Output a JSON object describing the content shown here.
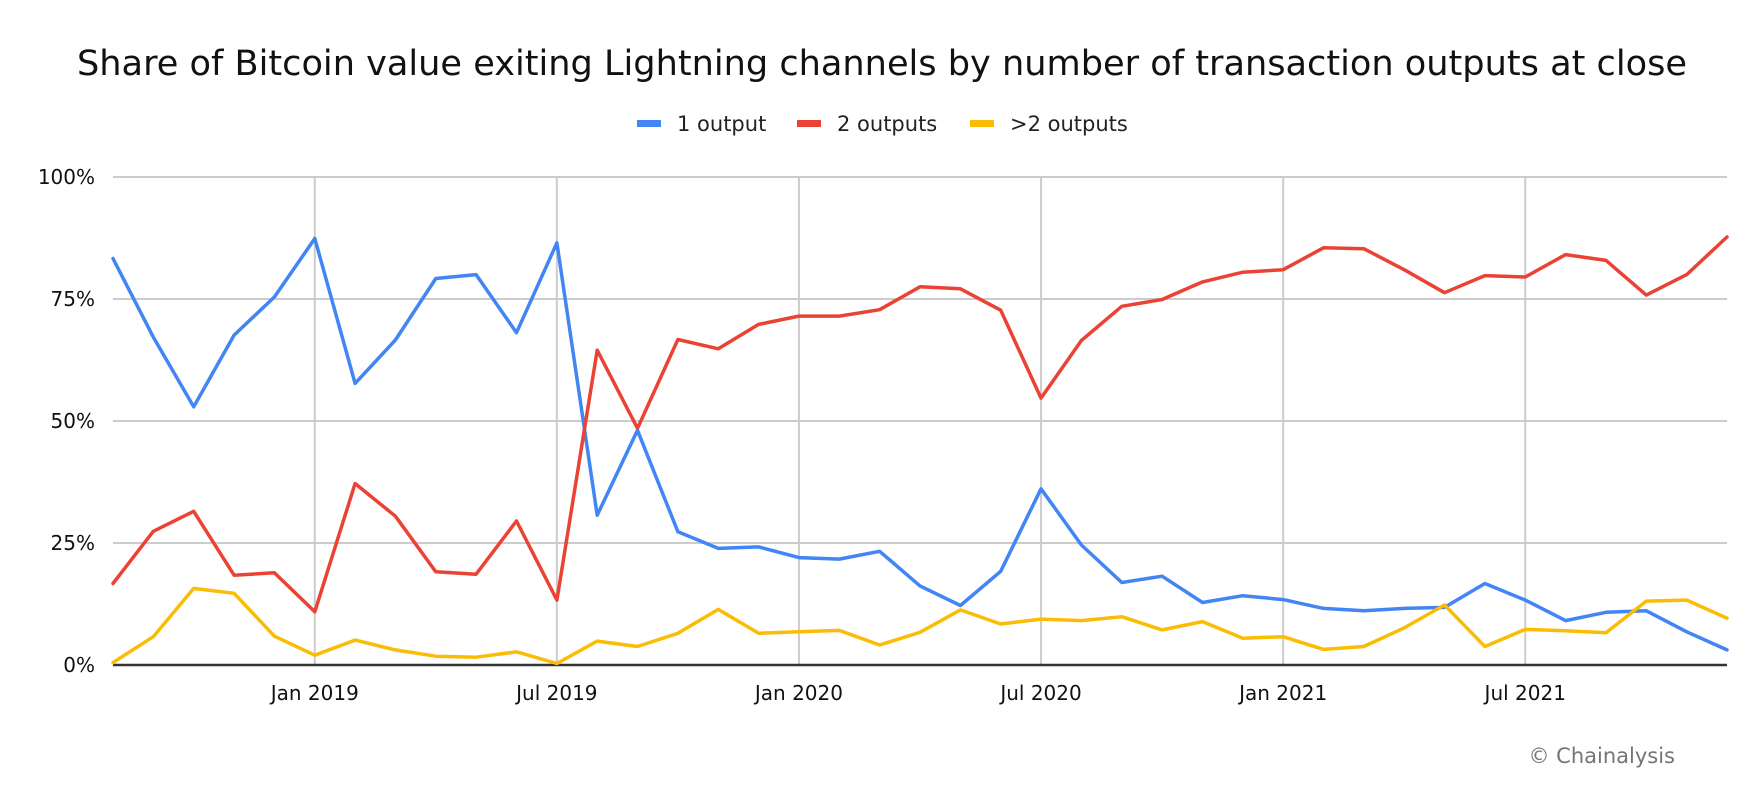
{
  "chart_data": {
    "type": "line",
    "title": "Share of Bitcoin value exiting Lightning channels by number of transaction outputs at close",
    "xlabel": "",
    "ylabel": "",
    "ylim": [
      0,
      100
    ],
    "yticks": [
      0,
      25,
      50,
      75,
      100
    ],
    "ytick_labels": [
      "0%",
      "25%",
      "50%",
      "75%",
      "100%"
    ],
    "x": [
      "Aug 2018",
      "Sep 2018",
      "Oct 2018",
      "Nov 2018",
      "Dec 2018",
      "Jan 2019",
      "Feb 2019",
      "Mar 2019",
      "Apr 2019",
      "May 2019",
      "Jun 2019",
      "Jul 2019",
      "Aug 2019",
      "Sep 2019",
      "Oct 2019",
      "Nov 2019",
      "Dec 2019",
      "Jan 2020",
      "Feb 2020",
      "Mar 2020",
      "Apr 2020",
      "May 2020",
      "Jun 2020",
      "Jul 2020",
      "Aug 2020",
      "Sep 2020",
      "Oct 2020",
      "Nov 2020",
      "Dec 2020",
      "Jan 2021",
      "Feb 2021",
      "Mar 2021",
      "Apr 2021",
      "May 2021",
      "Jun 2021",
      "Jul 2021",
      "Aug 2021",
      "Sep 2021",
      "Oct 2021",
      "Nov 2021",
      "Dec 2021"
    ],
    "xticks": [
      {
        "index": 5,
        "label": "Jan 2019"
      },
      {
        "index": 11,
        "label": "Jul 2019"
      },
      {
        "index": 17,
        "label": "Jan 2020"
      },
      {
        "index": 23,
        "label": "Jul 2020"
      },
      {
        "index": 29,
        "label": "Jan 2021"
      },
      {
        "index": 35,
        "label": "Jul 2021"
      }
    ],
    "grid": true,
    "legend_position": "top-center",
    "series": [
      {
        "name": "1 output",
        "color": "#4285f4",
        "values": [
          83.3,
          67.2,
          52.9,
          67.6,
          75.4,
          87.4,
          57.7,
          66.6,
          79.2,
          80.0,
          68.1,
          86.5,
          30.7,
          48.1,
          27.3,
          23.9,
          24.2,
          22.0,
          21.7,
          23.3,
          16.2,
          12.2,
          19.2,
          36.1,
          24.6,
          16.9,
          18.2,
          12.8,
          14.2,
          13.4,
          11.6,
          11.1,
          11.6,
          11.8,
          16.7,
          13.3,
          9.1,
          10.8,
          11.1,
          6.8,
          3.1
        ]
      },
      {
        "name": "2 outputs",
        "color": "#ea4335",
        "values": [
          16.7,
          27.4,
          31.5,
          18.4,
          18.9,
          10.9,
          37.2,
          30.5,
          19.1,
          18.6,
          29.5,
          13.3,
          64.5,
          48.5,
          66.7,
          64.8,
          69.8,
          71.5,
          71.5,
          72.8,
          77.5,
          77.1,
          72.7,
          54.7,
          66.5,
          73.5,
          74.9,
          78.5,
          80.5,
          81.0,
          85.5,
          85.3,
          81.0,
          76.3,
          79.8,
          79.5,
          84.1,
          82.9,
          75.8,
          80.0,
          87.7
        ]
      },
      {
        "name": ">2 outputs",
        "color": "#fbbc04",
        "values": [
          0.5,
          5.8,
          15.7,
          14.7,
          5.9,
          2.0,
          5.1,
          3.1,
          1.8,
          1.6,
          2.7,
          0.3,
          4.9,
          3.8,
          6.5,
          11.4,
          6.5,
          6.8,
          7.1,
          4.1,
          6.7,
          11.3,
          8.4,
          9.4,
          9.1,
          9.9,
          7.2,
          8.9,
          5.5,
          5.8,
          3.2,
          3.8,
          7.6,
          12.3,
          3.8,
          7.3,
          7.0,
          6.6,
          13.1,
          13.3,
          9.6
        ]
      }
    ]
  },
  "credit": "© Chainalysis"
}
